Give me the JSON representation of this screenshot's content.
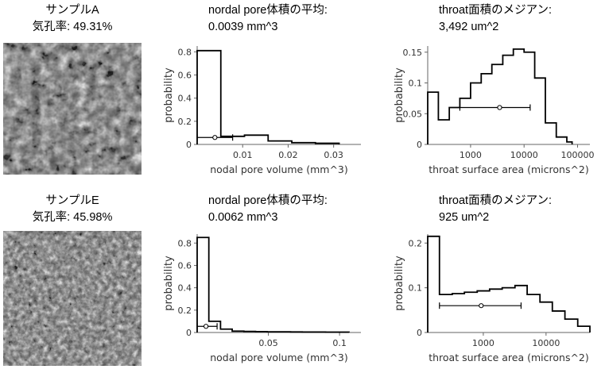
{
  "samples": [
    {
      "name": "サンプルA",
      "porosity": "気孔率: 49.31%",
      "pore_title": "nordal pore体積の平均:",
      "pore_value": "0.0039 mm^3",
      "throat_title": "throat面積のメジアン:",
      "throat_value": "3,492 um^2"
    },
    {
      "name": "サンプルE",
      "porosity": "気孔率: 45.98%",
      "pore_title": "nordal pore体積の平均:",
      "pore_value": "0.0062 mm^3",
      "throat_title": "throat面積のメジアン:",
      "throat_value": "925 um^2"
    }
  ],
  "chart_data": [
    {
      "type": "histogram",
      "xlabel": "nodal pore volume (mm^3)",
      "ylabel": "probability",
      "xscale": "linear",
      "xlim": [
        0,
        0.036
      ],
      "ylim": [
        0,
        0.85
      ],
      "xticks": [
        {
          "v": 0.01,
          "label": "0.01"
        },
        {
          "v": 0.02,
          "label": "0.02"
        },
        {
          "v": 0.03,
          "label": "0.03"
        }
      ],
      "yticks": [
        {
          "v": 0,
          "label": "0"
        },
        {
          "v": 0.2,
          "label": "0.2"
        },
        {
          "v": 0.4,
          "label": "0.4"
        },
        {
          "v": 0.6,
          "label": "0.6"
        },
        {
          "v": 0.8,
          "label": "0.8"
        }
      ],
      "bins": [
        0,
        0.0052,
        0.0104,
        0.0156,
        0.0208,
        0.026,
        0.0312
      ],
      "values": [
        0.81,
        0.07,
        0.08,
        0.03,
        0.015,
        0.01
      ],
      "errorbar": {
        "center": 0.0039,
        "low": 0,
        "high": 0.0078,
        "y": 0.06
      }
    },
    {
      "type": "histogram",
      "xlabel": "throat surface area (microns^2)",
      "ylabel": "probability",
      "xscale": "log",
      "xlim": [
        158,
        170000
      ],
      "ylim": [
        0,
        0.16
      ],
      "xticks": [
        {
          "v": 1000,
          "label": "1000"
        },
        {
          "v": 10000,
          "label": "10000"
        },
        {
          "v": 100000,
          "label": "100000"
        }
      ],
      "yticks": [
        {
          "v": 0,
          "label": "0"
        },
        {
          "v": 0.05,
          "label": "0.05"
        },
        {
          "v": 0.1,
          "label": "0.1"
        },
        {
          "v": 0.15,
          "label": "0.15"
        }
      ],
      "bins": [
        158,
        250,
        400,
        630,
        1000,
        1580,
        2500,
        4000,
        6300,
        10000,
        15800,
        25000,
        40000,
        63000,
        79000
      ],
      "values": [
        0.085,
        0.04,
        0.06,
        0.075,
        0.1,
        0.115,
        0.13,
        0.145,
        0.155,
        0.15,
        0.108,
        0.035,
        0.012,
        0.004
      ],
      "errorbar": {
        "center": 3492,
        "low": 630,
        "high": 13000,
        "y": 0.06
      }
    },
    {
      "type": "histogram",
      "xlabel": "nodal pore volume (mm^3)",
      "ylabel": "probability",
      "xscale": "linear",
      "xlim": [
        0,
        0.115
      ],
      "ylim": [
        0,
        0.88
      ],
      "xticks": [
        {
          "v": 0.05,
          "label": "0.05"
        },
        {
          "v": 0.1,
          "label": "0.1"
        }
      ],
      "yticks": [
        {
          "v": 0,
          "label": "0"
        },
        {
          "v": 0.2,
          "label": "0.2"
        },
        {
          "v": 0.4,
          "label": "0.4"
        },
        {
          "v": 0.6,
          "label": "0.6"
        },
        {
          "v": 0.8,
          "label": "0.8"
        }
      ],
      "bins": [
        0,
        0.0082,
        0.0164,
        0.0246,
        0.0328,
        0.041,
        0.0492,
        0.0574,
        0.0656,
        0.0738,
        0.082,
        0.0902,
        0.0984,
        0.1066
      ],
      "values": [
        0.85,
        0.1,
        0.03,
        0.012,
        0.01,
        0.008,
        0.006,
        0.006,
        0.005,
        0.004,
        0.004,
        0.003,
        0.003
      ],
      "errorbar": {
        "center": 0.0062,
        "low": 0,
        "high": 0.014,
        "y": 0.055
      }
    },
    {
      "type": "histogram",
      "xlabel": "throat surface area (microns^2)",
      "ylabel": "probability",
      "xscale": "log",
      "xlim": [
        130,
        50000
      ],
      "ylim": [
        0,
        0.22
      ],
      "xticks": [
        {
          "v": 1000,
          "label": "1000"
        },
        {
          "v": 10000,
          "label": "10000"
        }
      ],
      "yticks": [
        {
          "v": 0,
          "label": "0"
        },
        {
          "v": 0.1,
          "label": "0.1"
        },
        {
          "v": 0.2,
          "label": "0.2"
        }
      ],
      "bins": [
        130,
        200,
        320,
        500,
        800,
        1260,
        2000,
        3200,
        5000,
        8000,
        12600,
        20000,
        32000,
        50000
      ],
      "values": [
        0.215,
        0.085,
        0.087,
        0.09,
        0.093,
        0.097,
        0.1,
        0.105,
        0.085,
        0.068,
        0.048,
        0.03,
        0.014
      ],
      "errorbar": {
        "center": 925,
        "low": 200,
        "high": 4000,
        "y": 0.06
      }
    }
  ]
}
